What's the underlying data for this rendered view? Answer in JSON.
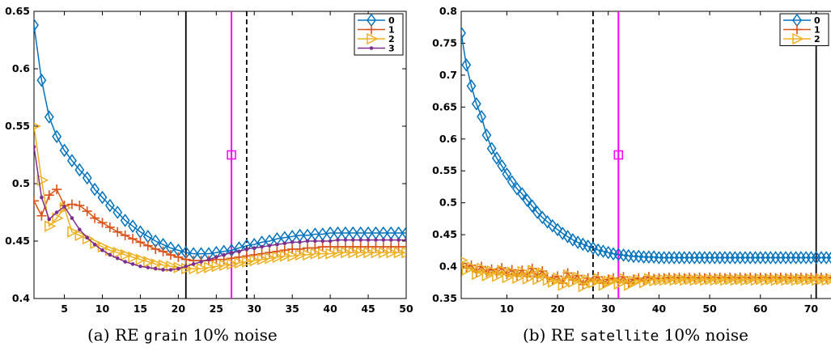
{
  "chart_data": [
    {
      "id": "a",
      "type": "line",
      "caption": {
        "prefix": "(a)  RE ",
        "dataset": "grain",
        "suffix": " 10% noise"
      },
      "xlim": [
        1,
        50
      ],
      "ylim": [
        0.4,
        0.65
      ],
      "xticks": [
        5,
        10,
        15,
        20,
        25,
        30,
        35,
        40,
        45,
        50
      ],
      "yticks": [
        "0.4",
        "0.45",
        "0.5",
        "0.55",
        "0.6",
        "0.65"
      ],
      "grid": false,
      "legend_placement": "top-right",
      "vlines": [
        {
          "x": 21,
          "style": "solid",
          "color": "#000000"
        },
        {
          "x": 29,
          "style": "dashed",
          "color": "#000000"
        },
        {
          "x": 27,
          "style": "solid",
          "color": "#ff00ff",
          "marker_y": 0.525
        }
      ],
      "series": [
        {
          "name": "0",
          "color": "#0072bd",
          "marker": "diamond",
          "values": [
            0.638,
            0.59,
            0.558,
            0.541,
            0.529,
            0.52,
            0.512,
            0.505,
            0.495,
            0.488,
            0.481,
            0.475,
            0.468,
            0.463,
            0.458,
            0.454,
            0.45,
            0.447,
            0.444,
            0.442,
            0.44,
            0.439,
            0.439,
            0.439,
            0.44,
            0.441,
            0.442,
            0.444,
            0.446,
            0.447,
            0.449,
            0.45,
            0.452,
            0.453,
            0.454,
            0.455,
            0.455,
            0.456,
            0.456,
            0.457,
            0.457,
            0.457,
            0.457,
            0.457,
            0.457,
            0.457,
            0.457,
            0.457,
            0.457,
            0.457
          ]
        },
        {
          "name": "1",
          "color": "#d95319",
          "marker": "plus",
          "values": [
            0.485,
            0.472,
            0.49,
            0.495,
            0.481,
            0.482,
            0.481,
            0.476,
            0.47,
            0.466,
            0.462,
            0.458,
            0.455,
            0.452,
            0.449,
            0.446,
            0.443,
            0.441,
            0.438,
            0.436,
            0.434,
            0.433,
            0.433,
            0.433,
            0.434,
            0.434,
            0.435,
            0.436,
            0.437,
            0.438,
            0.439,
            0.44,
            0.441,
            0.442,
            0.443,
            0.443,
            0.444,
            0.444,
            0.445,
            0.445,
            0.445,
            0.445,
            0.445,
            0.445,
            0.445,
            0.445,
            0.445,
            0.445,
            0.445,
            0.445
          ]
        },
        {
          "name": "2",
          "color": "#edb120",
          "marker": "triangle-right",
          "values": [
            0.55,
            0.503,
            0.463,
            0.47,
            0.479,
            0.458,
            0.455,
            0.452,
            0.448,
            0.445,
            0.442,
            0.44,
            0.438,
            0.436,
            0.434,
            0.432,
            0.43,
            0.429,
            0.428,
            0.427,
            0.426,
            0.426,
            0.426,
            0.427,
            0.428,
            0.429,
            0.43,
            0.431,
            0.432,
            0.433,
            0.434,
            0.435,
            0.436,
            0.437,
            0.437,
            0.438,
            0.438,
            0.439,
            0.439,
            0.439,
            0.44,
            0.44,
            0.44,
            0.44,
            0.44,
            0.44,
            0.44,
            0.44,
            0.44,
            0.44
          ]
        },
        {
          "name": "3",
          "color": "#7e2f8e",
          "marker": "dot",
          "values": [
            0.532,
            0.488,
            0.469,
            0.475,
            0.48,
            0.47,
            0.46,
            0.453,
            0.447,
            0.442,
            0.438,
            0.435,
            0.432,
            0.43,
            0.428,
            0.427,
            0.426,
            0.425,
            0.425,
            0.426,
            0.428,
            0.43,
            0.432,
            0.434,
            0.436,
            0.438,
            0.44,
            0.441,
            0.443,
            0.444,
            0.445,
            0.446,
            0.447,
            0.448,
            0.449,
            0.449,
            0.45,
            0.45,
            0.45,
            0.45,
            0.451,
            0.451,
            0.451,
            0.451,
            0.451,
            0.451,
            0.451,
            0.451,
            0.451,
            0.451
          ]
        }
      ]
    },
    {
      "id": "b",
      "type": "line",
      "caption": {
        "prefix": "(b)  RE ",
        "dataset": "satellite",
        "suffix": " 10% noise"
      },
      "xlim": [
        1,
        76
      ],
      "ylim": [
        0.35,
        0.8
      ],
      "xticks": [
        10,
        20,
        30,
        40,
        50,
        60,
        70
      ],
      "yticks": [
        "0.35",
        "0.4",
        "0.45",
        "0.5",
        "0.55",
        "0.6",
        "0.65",
        "0.7",
        "0.75",
        "0.8"
      ],
      "grid": false,
      "legend_placement": "top-right",
      "vlines": [
        {
          "x": 27,
          "style": "dashed",
          "color": "#000000"
        },
        {
          "x": 71,
          "style": "solid",
          "color": "#000000"
        },
        {
          "x": 32,
          "style": "solid",
          "color": "#ff00ff",
          "marker_y": 0.575
        }
      ],
      "series": [
        {
          "name": "0",
          "color": "#0072bd",
          "marker": "diamond",
          "values": [
            0.766,
            0.716,
            0.683,
            0.655,
            0.635,
            0.606,
            0.585,
            0.57,
            0.558,
            0.545,
            0.533,
            0.522,
            0.514,
            0.504,
            0.495,
            0.485,
            0.477,
            0.47,
            0.464,
            0.458,
            0.452,
            0.447,
            0.442,
            0.438,
            0.435,
            0.432,
            0.429,
            0.426,
            0.424,
            0.422,
            0.42,
            0.419,
            0.418,
            0.417,
            0.416,
            0.416,
            0.415,
            0.415,
            0.415,
            0.414,
            0.414,
            0.414,
            0.414,
            0.414,
            0.414,
            0.414,
            0.414,
            0.414,
            0.414,
            0.414,
            0.414,
            0.414,
            0.414,
            0.414,
            0.414,
            0.414,
            0.414,
            0.414,
            0.414,
            0.414,
            0.414,
            0.414,
            0.414,
            0.414,
            0.414,
            0.414,
            0.414,
            0.414,
            0.414,
            0.414,
            0.414,
            0.414,
            0.414,
            0.414,
            0.414,
            0.414
          ]
        },
        {
          "name": "1",
          "color": "#d95319",
          "marker": "plus",
          "values": [
            0.405,
            0.398,
            0.402,
            0.392,
            0.4,
            0.391,
            0.396,
            0.39,
            0.398,
            0.388,
            0.395,
            0.386,
            0.394,
            0.385,
            0.397,
            0.384,
            0.393,
            0.383,
            0.38,
            0.385,
            0.374,
            0.39,
            0.379,
            0.386,
            0.372,
            0.382,
            0.378,
            0.384,
            0.374,
            0.38,
            0.382,
            0.376,
            0.384,
            0.374,
            0.38,
            0.382,
            0.378,
            0.384,
            0.381,
            0.382,
            0.382,
            0.383,
            0.382,
            0.383,
            0.382,
            0.383,
            0.382,
            0.383,
            0.382,
            0.383,
            0.382,
            0.383,
            0.382,
            0.383,
            0.382,
            0.383,
            0.382,
            0.383,
            0.382,
            0.383,
            0.382,
            0.383,
            0.382,
            0.383,
            0.382,
            0.383,
            0.382,
            0.383,
            0.382,
            0.383,
            0.382,
            0.383,
            0.382,
            0.383,
            0.382,
            0.383
          ]
        },
        {
          "name": "2",
          "color": "#edb120",
          "marker": "triangle-right",
          "values": [
            0.41,
            0.395,
            0.399,
            0.388,
            0.397,
            0.386,
            0.393,
            0.385,
            0.394,
            0.383,
            0.391,
            0.382,
            0.392,
            0.381,
            0.394,
            0.38,
            0.39,
            0.379,
            0.376,
            0.382,
            0.371,
            0.387,
            0.376,
            0.383,
            0.369,
            0.379,
            0.375,
            0.381,
            0.371,
            0.377,
            0.379,
            0.373,
            0.381,
            0.371,
            0.377,
            0.379,
            0.375,
            0.381,
            0.378,
            0.379,
            0.379,
            0.38,
            0.379,
            0.38,
            0.379,
            0.38,
            0.379,
            0.38,
            0.379,
            0.38,
            0.379,
            0.38,
            0.379,
            0.38,
            0.379,
            0.38,
            0.379,
            0.38,
            0.379,
            0.38,
            0.379,
            0.38,
            0.379,
            0.38,
            0.379,
            0.38,
            0.379,
            0.38,
            0.379,
            0.38,
            0.379,
            0.38,
            0.379,
            0.38,
            0.379,
            0.38
          ]
        }
      ]
    }
  ]
}
